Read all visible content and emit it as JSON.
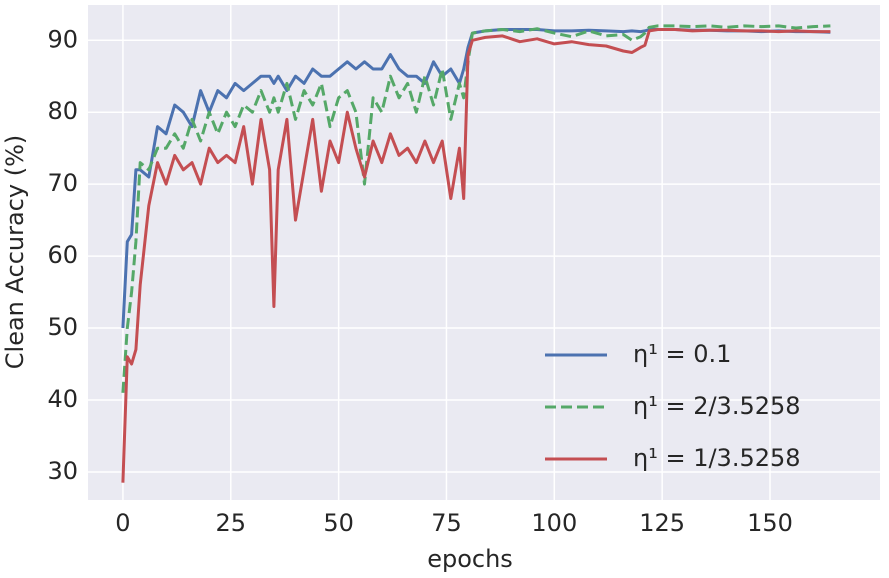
{
  "chart_data": {
    "type": "line",
    "xlabel": "epochs",
    "ylabel": "Clean Accuracy (%)",
    "x": [
      0,
      1,
      2,
      3,
      4,
      6,
      8,
      10,
      12,
      14,
      16,
      18,
      20,
      22,
      24,
      26,
      28,
      30,
      32,
      34,
      35,
      36,
      38,
      40,
      42,
      44,
      46,
      48,
      50,
      52,
      54,
      56,
      58,
      60,
      62,
      64,
      66,
      68,
      70,
      72,
      74,
      76,
      78,
      79,
      80,
      81,
      84,
      88,
      92,
      96,
      100,
      104,
      108,
      112,
      116,
      118,
      120,
      121,
      122,
      124,
      128,
      132,
      136,
      140,
      144,
      148,
      152,
      156,
      160,
      164
    ],
    "series": [
      {
        "name": "η¹ = 0.1",
        "color": "#4c72b0",
        "linestyle": "solid",
        "values": [
          50,
          62,
          63,
          72,
          72,
          71,
          78,
          77,
          81,
          80,
          78,
          83,
          80,
          83,
          82,
          84,
          83,
          84,
          85,
          85,
          84,
          85,
          83,
          85,
          84,
          86,
          85,
          85,
          86,
          87,
          86,
          87,
          86,
          86,
          88,
          86,
          85,
          85,
          84,
          87,
          85,
          86,
          84,
          86,
          89,
          91,
          91.3,
          91.5,
          91.5,
          91.5,
          91.3,
          91.3,
          91.4,
          91.3,
          91.2,
          91.3,
          91.2,
          91.3,
          91.5,
          91.5,
          91.5,
          91.4,
          91.4,
          91.3,
          91.3,
          91.2,
          91.3,
          91.2,
          91.2,
          91.1
        ]
      },
      {
        "name": "η¹ = 2/3.5258",
        "color": "#55a868",
        "linestyle": "dashed",
        "values": [
          41,
          50,
          55,
          62,
          73,
          72,
          75,
          75,
          77,
          75,
          79,
          76,
          80,
          77,
          80,
          78,
          81,
          80,
          83,
          80,
          82,
          80,
          84,
          79,
          83,
          81,
          84,
          78,
          82,
          83,
          80,
          70,
          82,
          80,
          85,
          82,
          84,
          80,
          85,
          81,
          86,
          79,
          84,
          82,
          87,
          91,
          91.3,
          91.5,
          91.2,
          91.6,
          91,
          90.5,
          91.3,
          90.6,
          90.8,
          90,
          90.5,
          91,
          91.8,
          92,
          92,
          91.9,
          92,
          91.8,
          92,
          91.9,
          92,
          91.7,
          91.9,
          92
        ]
      },
      {
        "name": "η¹ = 1/3.5258",
        "color": "#c44e52",
        "linestyle": "solid",
        "values": [
          28.5,
          46,
          45,
          47,
          56,
          67,
          73,
          70,
          74,
          72,
          73,
          70,
          75,
          73,
          74,
          73,
          78,
          70,
          79,
          72,
          53,
          72,
          79,
          65,
          72,
          79,
          69,
          76,
          73,
          80,
          75,
          71,
          76,
          73,
          77,
          74,
          75,
          73,
          76,
          73,
          76,
          68,
          75,
          68,
          88,
          90,
          90.4,
          90.6,
          89.8,
          90.2,
          89.5,
          89.8,
          89.4,
          89.2,
          88.5,
          88.3,
          89,
          89.3,
          91.3,
          91.5,
          91.5,
          91.3,
          91.4,
          91.4,
          91.3,
          91.3,
          91.2,
          91.3,
          91.2,
          91.2
        ]
      }
    ],
    "xlim": [
      -8.1,
      175.5
    ],
    "ylim": [
      26.1,
      94.9
    ],
    "xticks": [
      0,
      25,
      50,
      75,
      100,
      125,
      150
    ],
    "yticks": [
      30,
      40,
      50,
      60,
      70,
      80,
      90
    ],
    "grid": true,
    "legend": "lower right",
    "background": "#eaeaf2"
  }
}
